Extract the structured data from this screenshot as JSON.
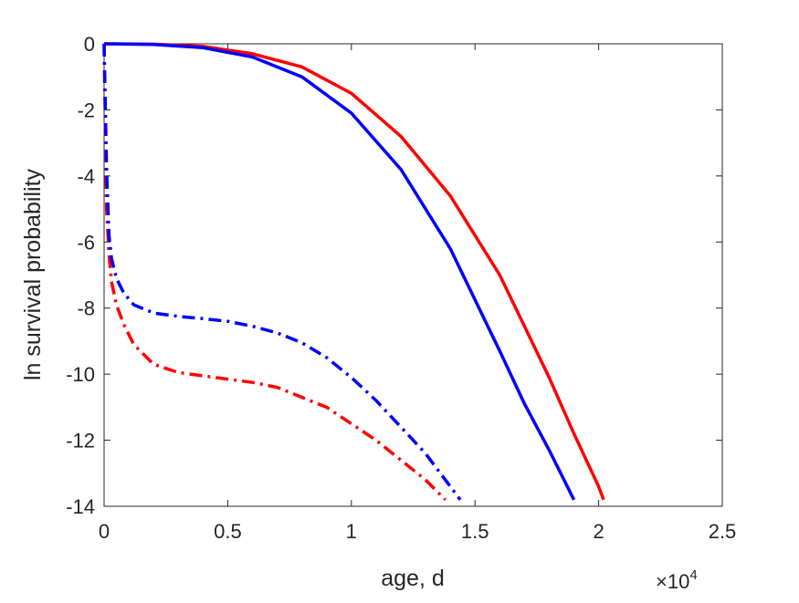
{
  "chart_data": {
    "type": "line",
    "xlabel": "age, d",
    "ylabel": "ln survival probability",
    "x_exponent_label": "×10",
    "x_exponent_power": "4",
    "xlim": [
      0,
      25000
    ],
    "ylim": [
      -14,
      0
    ],
    "x_ticks": [
      0,
      5000,
      10000,
      15000,
      20000,
      25000
    ],
    "x_tick_labels": [
      "0",
      "0.5",
      "1",
      "1.5",
      "2",
      "2.5"
    ],
    "y_ticks": [
      0,
      -2,
      -4,
      -6,
      -8,
      -10,
      -12,
      -14
    ],
    "y_tick_labels": [
      "0",
      "-2",
      "-4",
      "-6",
      "-8",
      "-10",
      "-12",
      "-14"
    ],
    "grid": false,
    "series": [
      {
        "color": "#ff0000",
        "style": "solid",
        "x": [
          0,
          2000,
          4000,
          6000,
          8000,
          10000,
          12000,
          14000,
          16000,
          18000,
          19000,
          20000,
          20200
        ],
        "y": [
          0,
          -0.01,
          -0.08,
          -0.3,
          -0.7,
          -1.5,
          -2.8,
          -4.6,
          -7.0,
          -10.1,
          -11.8,
          -13.4,
          -13.8
        ]
      },
      {
        "color": "#0000ff",
        "style": "solid",
        "x": [
          0,
          2000,
          4000,
          6000,
          8000,
          10000,
          12000,
          14000,
          16000,
          17000,
          18000,
          19000
        ],
        "y": [
          0,
          -0.02,
          -0.12,
          -0.4,
          -1.0,
          -2.1,
          -3.8,
          -6.2,
          -9.3,
          -10.9,
          -12.3,
          -13.8
        ]
      },
      {
        "color": "#ff0000",
        "style": "dashdot",
        "x": [
          0,
          100,
          200,
          300,
          500,
          800,
          1200,
          2000,
          3000,
          4000,
          5000,
          6000,
          7000,
          8000,
          9000,
          10000,
          11000,
          12000,
          13000,
          13800
        ],
        "y": [
          0,
          -5.0,
          -6.4,
          -7.2,
          -7.9,
          -8.5,
          -9.1,
          -9.7,
          -9.95,
          -10.05,
          -10.15,
          -10.25,
          -10.4,
          -10.7,
          -11.0,
          -11.5,
          -12.0,
          -12.6,
          -13.2,
          -13.8
        ]
      },
      {
        "color": "#0000ff",
        "style": "dashdot",
        "x": [
          0,
          100,
          200,
          300,
          500,
          800,
          1200,
          2000,
          3000,
          4000,
          5000,
          6000,
          7000,
          8000,
          9000,
          10000,
          11000,
          12000,
          13000,
          14400
        ],
        "y": [
          0,
          -3.8,
          -5.8,
          -6.5,
          -7.1,
          -7.55,
          -7.9,
          -8.15,
          -8.25,
          -8.32,
          -8.4,
          -8.55,
          -8.75,
          -9.05,
          -9.5,
          -10.1,
          -10.8,
          -11.6,
          -12.4,
          -13.8
        ]
      }
    ]
  }
}
